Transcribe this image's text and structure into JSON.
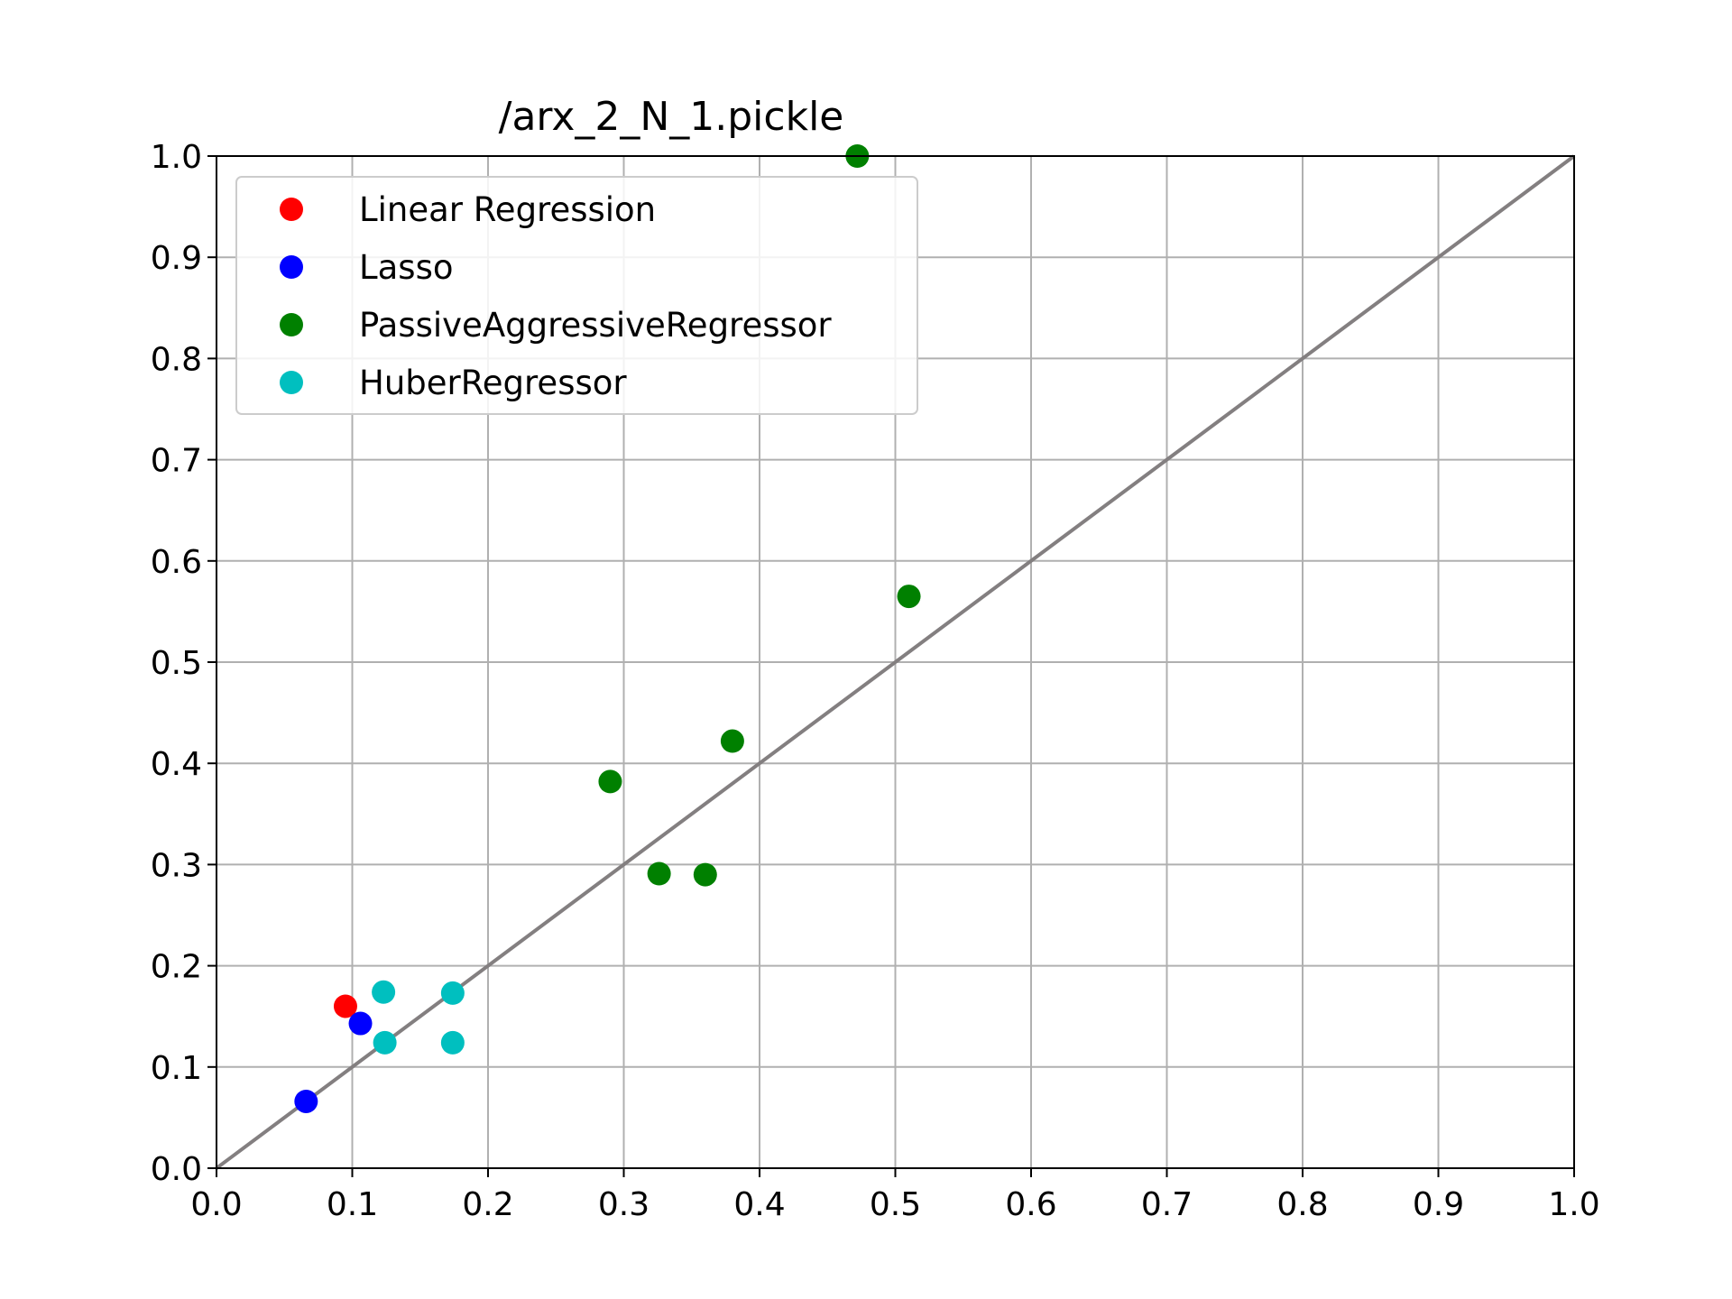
{
  "chart_data": {
    "type": "scatter",
    "title": "/arx_2_N_1.pickle",
    "xlabel": "",
    "ylabel": "",
    "xlim": [
      0.0,
      1.0
    ],
    "ylim": [
      0.0,
      1.0
    ],
    "grid": true,
    "legend_position": "top-left",
    "x_ticks": [
      "0.0",
      "0.1",
      "0.2",
      "0.3",
      "0.4",
      "0.5",
      "0.6",
      "0.7",
      "0.8",
      "0.9",
      "1.0"
    ],
    "y_ticks": [
      "0.0",
      "0.1",
      "0.2",
      "0.3",
      "0.4",
      "0.5",
      "0.6",
      "0.7",
      "0.8",
      "0.9",
      "1.0"
    ],
    "reference_line": {
      "points": [
        [
          0.0,
          0.0
        ],
        [
          1.0,
          1.0
        ]
      ],
      "color": "#837f80"
    },
    "series": [
      {
        "name": "Linear Regression",
        "color": "#ff0000",
        "points": [
          [
            0.095,
            0.16
          ]
        ]
      },
      {
        "name": "Lasso",
        "color": "#0000ff",
        "points": [
          [
            0.066,
            0.066
          ],
          [
            0.106,
            0.143
          ]
        ]
      },
      {
        "name": "PassiveAggressiveRegressor",
        "color": "#008000",
        "points": [
          [
            0.472,
            1.0
          ],
          [
            0.51,
            0.565
          ],
          [
            0.38,
            0.422
          ],
          [
            0.29,
            0.382
          ],
          [
            0.326,
            0.291
          ],
          [
            0.36,
            0.29
          ]
        ]
      },
      {
        "name": "HuberRegressor",
        "color": "#00bfbf",
        "points": [
          [
            0.123,
            0.174
          ],
          [
            0.174,
            0.173
          ],
          [
            0.124,
            0.124
          ],
          [
            0.174,
            0.124
          ]
        ]
      }
    ]
  }
}
